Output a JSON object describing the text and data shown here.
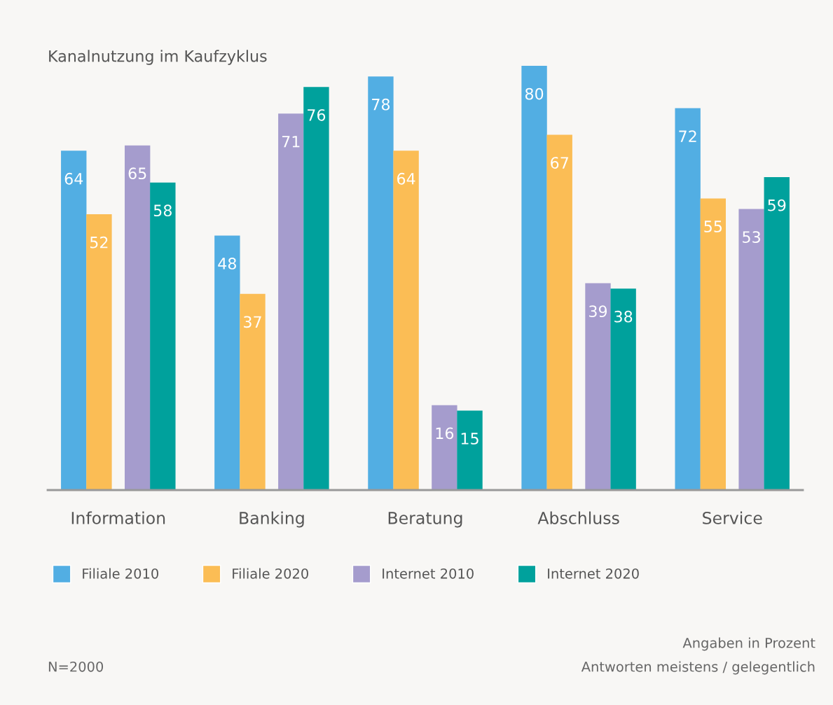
{
  "chart_data": {
    "type": "bar",
    "title": "Kanalnutzung im Kaufzyklus",
    "categories": [
      "Information",
      "Banking",
      "Beratung",
      "Abschluss",
      "Service"
    ],
    "series": [
      {
        "name": "Filiale 2010",
        "color": "#52aee3",
        "values": [
          64,
          48,
          78,
          80,
          72
        ]
      },
      {
        "name": "Filiale 2020",
        "color": "#fbbd55",
        "values": [
          52,
          37,
          64,
          67,
          55
        ]
      },
      {
        "name": "Internet 2010",
        "color": "#a59ccd",
        "values": [
          65,
          71,
          16,
          39,
          53
        ]
      },
      {
        "name": "Internet 2020",
        "color": "#00a19c",
        "values": [
          58,
          76,
          15,
          38,
          59
        ]
      }
    ],
    "data_labels": true,
    "legend": "bottom",
    "grid": false,
    "annotations": [
      "Angaben in Prozent",
      "Antworten meistens / gelegentlich",
      "N=2000"
    ]
  }
}
